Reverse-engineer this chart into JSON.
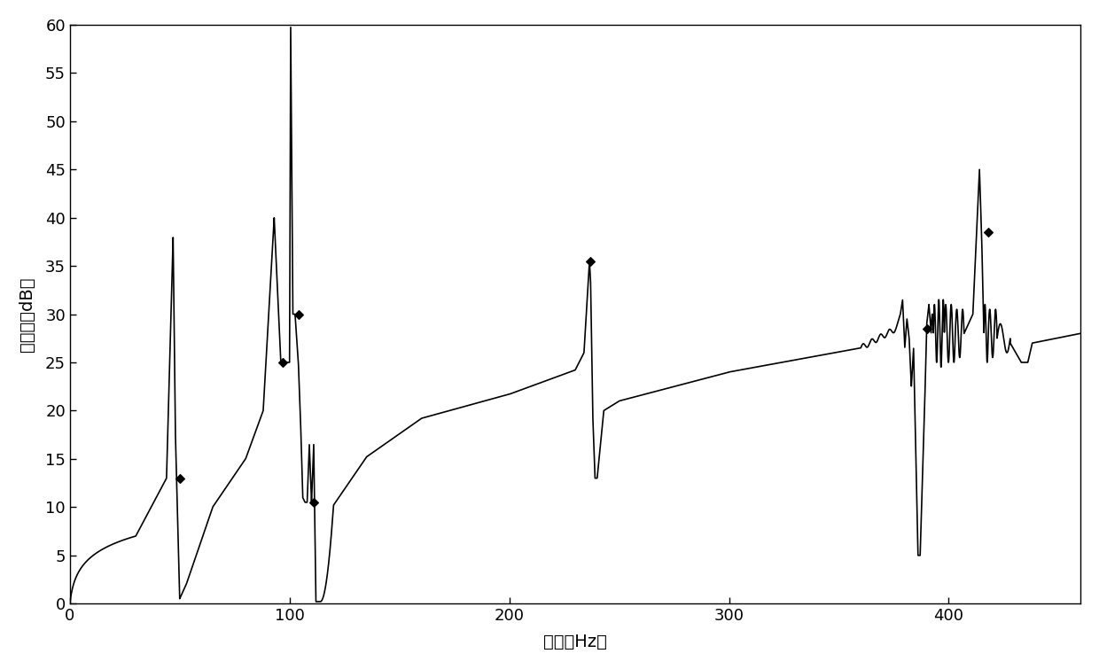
{
  "xlabel": "频率（Hz）",
  "ylabel": "隔声量（dB）",
  "xlim": [
    0,
    460
  ],
  "ylim": [
    0,
    60
  ],
  "yticks": [
    0,
    5,
    10,
    15,
    20,
    25,
    30,
    35,
    40,
    45,
    50,
    55,
    60
  ],
  "xticks": [
    0,
    100,
    200,
    300,
    400
  ],
  "line_color": "#000000",
  "background_color": "#ffffff",
  "marker_color": "#000000",
  "marker_points": [
    [
      50,
      13.0
    ],
    [
      97,
      25.0
    ],
    [
      104,
      30.0
    ],
    [
      111,
      10.5
    ],
    [
      237,
      35.5
    ],
    [
      390,
      28.5
    ],
    [
      418,
      38.5
    ]
  ]
}
